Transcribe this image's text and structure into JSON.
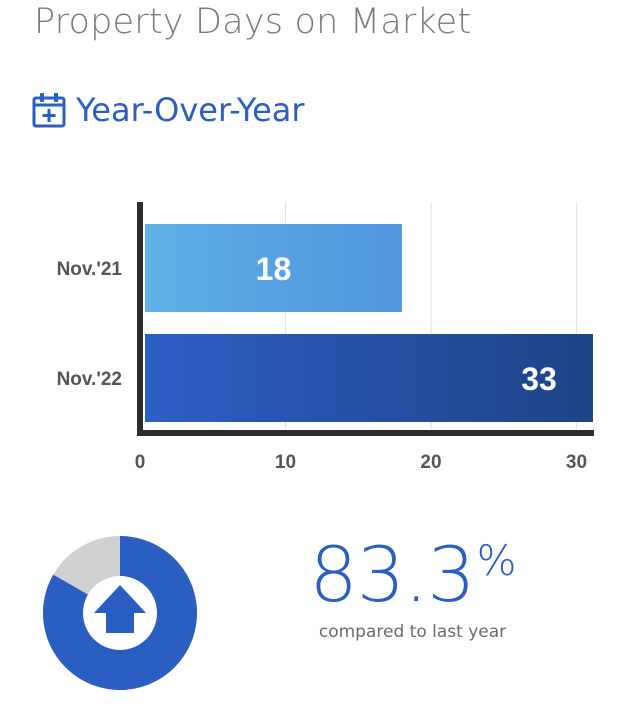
{
  "page": {
    "title": "Property Days on Market"
  },
  "section": {
    "title": "Year-Over-Year",
    "icon": "calendar-plus-icon"
  },
  "chart_data": {
    "type": "bar",
    "orientation": "horizontal",
    "categories": [
      "Nov.'21",
      "Nov.'22"
    ],
    "values": [
      18,
      33
    ],
    "value_labels": [
      "18",
      "33"
    ],
    "xticks": [
      0,
      10,
      20,
      30
    ],
    "xlim": [
      0,
      31
    ],
    "grid": true,
    "colors": [
      [
        "#5fb0e6",
        "#4f95dd"
      ],
      [
        "#2c5fc6",
        "#1e4386"
      ]
    ]
  },
  "summary": {
    "value": "83.3",
    "unit": "%",
    "caption": "compared to last year",
    "direction_icon": "arrow-up-icon",
    "ring_fraction": 0.833,
    "colors": {
      "accent": "#2a5ec1",
      "ring_remainder": "#d0d0d0"
    }
  }
}
